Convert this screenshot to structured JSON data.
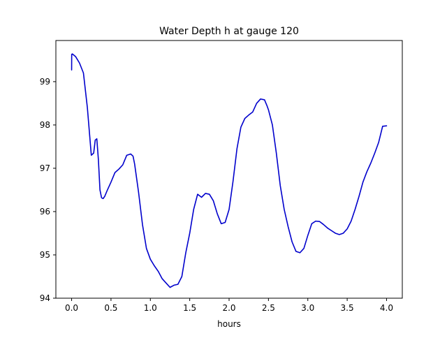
{
  "chart_data": {
    "type": "line",
    "title": "Water Depth h at gauge 120",
    "xlabel": "hours",
    "ylabel": "",
    "xlim": [
      -0.2,
      4.2
    ],
    "ylim": [
      94.0,
      99.95
    ],
    "xticks": [
      0.0,
      0.5,
      1.0,
      1.5,
      2.0,
      2.5,
      3.0,
      3.5,
      4.0
    ],
    "xtick_labels": [
      "0.0",
      "0.5",
      "1.0",
      "1.5",
      "2.0",
      "2.5",
      "3.0",
      "3.5",
      "4.0"
    ],
    "yticks": [
      94,
      95,
      96,
      97,
      98,
      99
    ],
    "ytick_labels": [
      "94",
      "95",
      "96",
      "97",
      "98",
      "99"
    ],
    "grid": false,
    "colors": {
      "line": "#0000cc",
      "axes": "#000000",
      "background": "#ffffff"
    },
    "series": [
      {
        "x": [
          0.0,
          0.001,
          0.01,
          0.05,
          0.1,
          0.15,
          0.2,
          0.25,
          0.28,
          0.3,
          0.32,
          0.34,
          0.36,
          0.38,
          0.4,
          0.42,
          0.45,
          0.5,
          0.55,
          0.6,
          0.65,
          0.7,
          0.75,
          0.78,
          0.8,
          0.85,
          0.9,
          0.95,
          1.0,
          1.05,
          1.1,
          1.15,
          1.2,
          1.25,
          1.3,
          1.35,
          1.4,
          1.45,
          1.5,
          1.55,
          1.6,
          1.65,
          1.7,
          1.75,
          1.8,
          1.85,
          1.9,
          1.95,
          2.0,
          2.05,
          2.1,
          2.15,
          2.2,
          2.25,
          2.3,
          2.35,
          2.4,
          2.45,
          2.48,
          2.5,
          2.55,
          2.6,
          2.65,
          2.7,
          2.75,
          2.8,
          2.85,
          2.9,
          2.95,
          3.0,
          3.05,
          3.1,
          3.15,
          3.2,
          3.25,
          3.3,
          3.35,
          3.4,
          3.45,
          3.5,
          3.55,
          3.6,
          3.65,
          3.7,
          3.75,
          3.8,
          3.85,
          3.9,
          3.95,
          4.0
        ],
        "y": [
          99.27,
          99.63,
          99.64,
          99.58,
          99.43,
          99.2,
          98.4,
          97.3,
          97.35,
          97.65,
          97.68,
          97.2,
          96.5,
          96.32,
          96.3,
          96.35,
          96.48,
          96.68,
          96.9,
          96.98,
          97.08,
          97.3,
          97.33,
          97.28,
          97.1,
          96.45,
          95.7,
          95.15,
          94.9,
          94.75,
          94.62,
          94.45,
          94.35,
          94.25,
          94.3,
          94.32,
          94.5,
          95.05,
          95.5,
          96.05,
          96.4,
          96.33,
          96.42,
          96.4,
          96.25,
          95.95,
          95.72,
          95.75,
          96.05,
          96.7,
          97.45,
          97.95,
          98.15,
          98.23,
          98.3,
          98.5,
          98.6,
          98.58,
          98.45,
          98.35,
          98.0,
          97.35,
          96.6,
          96.05,
          95.65,
          95.3,
          95.08,
          95.05,
          95.15,
          95.45,
          95.72,
          95.78,
          95.77,
          95.7,
          95.62,
          95.56,
          95.5,
          95.47,
          95.5,
          95.6,
          95.78,
          96.05,
          96.35,
          96.68,
          96.92,
          97.12,
          97.35,
          97.6,
          97.97,
          97.98
        ]
      }
    ]
  }
}
